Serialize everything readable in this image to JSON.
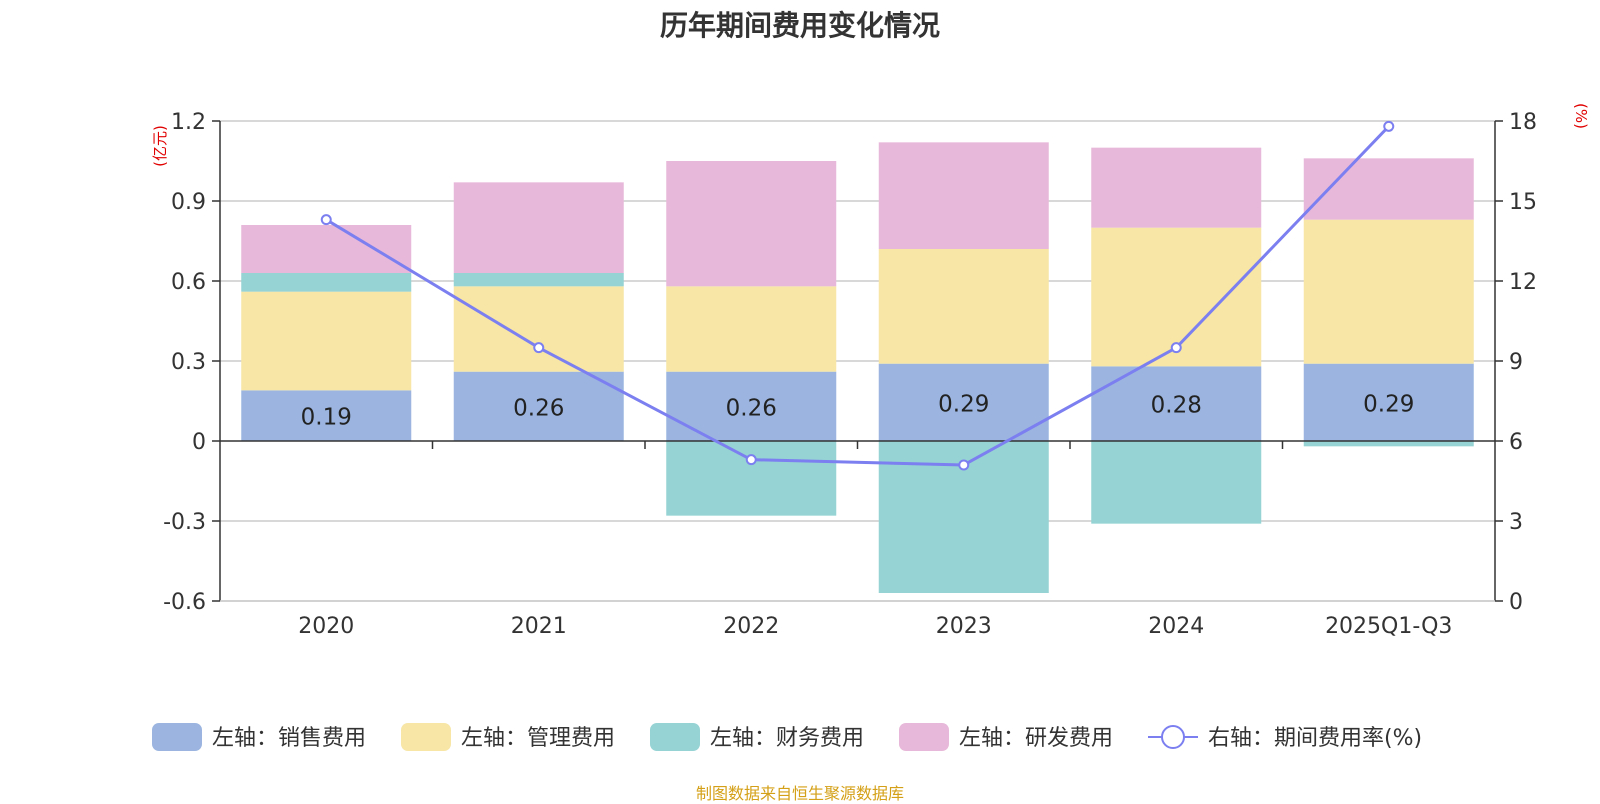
{
  "chart_data": {
    "type": "bar",
    "stacked": true,
    "title": "历年期间费用变化情况",
    "left_axis_unit": "(亿元)",
    "right_axis_unit": "(%)",
    "categories": [
      "2020",
      "2021",
      "2022",
      "2023",
      "2024",
      "2025Q1-Q3"
    ],
    "left_ylim": [
      -0.6,
      1.2
    ],
    "left_ticks": [
      -0.6,
      -0.3,
      0,
      0.3,
      0.6,
      0.9,
      1.2
    ],
    "left_tick_labels": [
      "-0.6",
      "-0.3",
      "0",
      "0.3",
      "0.6",
      "0.9",
      "1.2"
    ],
    "right_ylim": [
      0,
      18
    ],
    "right_ticks": [
      0,
      3,
      6,
      9,
      12,
      15,
      18
    ],
    "right_tick_labels": [
      "0",
      "3",
      "6",
      "9",
      "12",
      "15",
      "18"
    ],
    "series": [
      {
        "name": "左轴：销售费用",
        "color": "#9bb5e0",
        "values": [
          0.19,
          0.26,
          0.26,
          0.29,
          0.28,
          0.29
        ],
        "labels": [
          "0.19",
          "0.26",
          "0.26",
          "0.29",
          "0.28",
          "0.29"
        ]
      },
      {
        "name": "左轴：管理费用",
        "color": "#f7e6a6",
        "values": [
          0.37,
          0.32,
          0.32,
          0.43,
          0.52,
          0.54
        ]
      },
      {
        "name": "左轴：财务费用",
        "color": "#96d3d4",
        "values": [
          0.07,
          0.05,
          -0.28,
          -0.57,
          -0.31,
          -0.02
        ]
      },
      {
        "name": "左轴：研发费用",
        "color": "#e7b8d9",
        "values": [
          0.18,
          0.34,
          0.47,
          0.4,
          0.3,
          0.23
        ]
      }
    ],
    "line": {
      "name": "右轴：期间费用率(%)",
      "color": "#7b7ff0",
      "values": [
        14.3,
        9.5,
        5.3,
        5.1,
        9.5,
        17.8
      ]
    },
    "legend_position": "bottom"
  },
  "footer": "制图数据来自恒生聚源数据库"
}
